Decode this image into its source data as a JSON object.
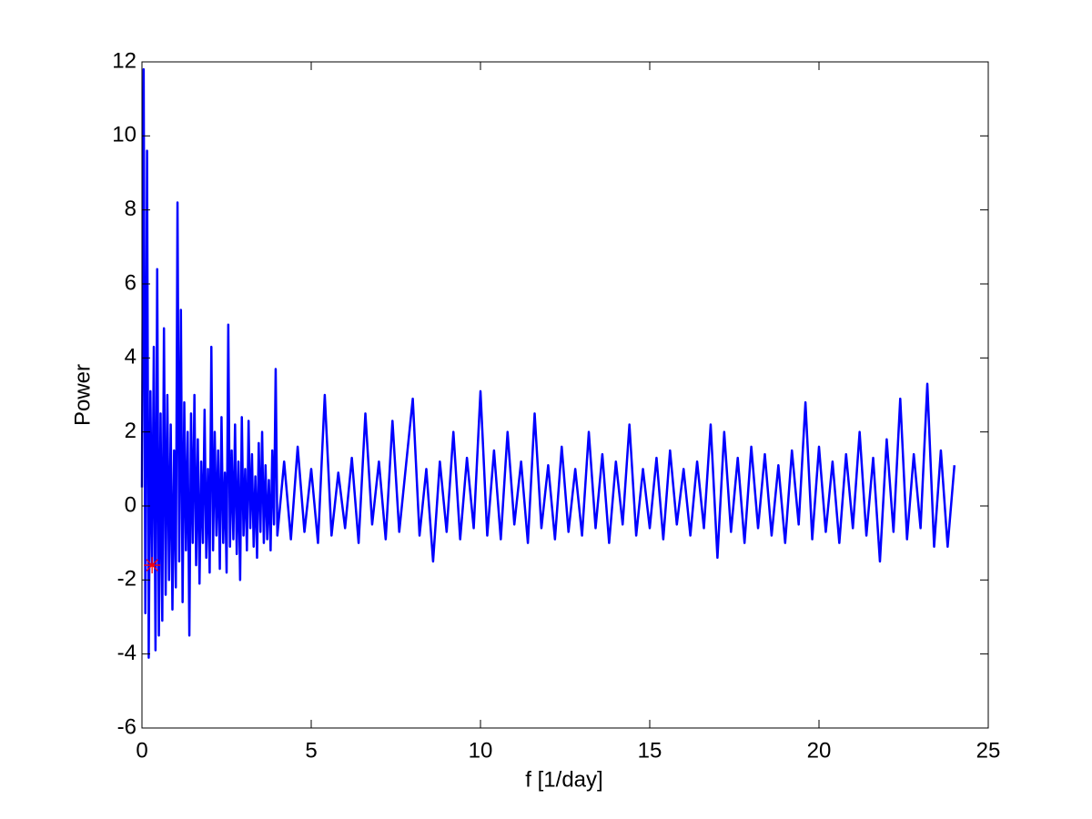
{
  "chart_data": {
    "type": "line",
    "xlabel": "f [1/day]",
    "ylabel": "Power",
    "xlim": [
      0,
      25
    ],
    "xticks": [
      0,
      5,
      10,
      15,
      20,
      25
    ],
    "ylim": [
      -6,
      12
    ],
    "yticks": [
      -6,
      -4,
      -2,
      0,
      2,
      4,
      6,
      8,
      10,
      12
    ],
    "grid": false,
    "color": "#0000ff",
    "x": [
      0,
      0.05,
      0.1,
      0.15,
      0.2,
      0.25,
      0.3,
      0.35,
      0.4,
      0.45,
      0.5,
      0.55,
      0.6,
      0.65,
      0.7,
      0.75,
      0.8,
      0.85,
      0.9,
      0.95,
      1.0,
      1.05,
      1.1,
      1.15,
      1.2,
      1.25,
      1.3,
      1.35,
      1.4,
      1.45,
      1.5,
      1.55,
      1.6,
      1.65,
      1.7,
      1.75,
      1.8,
      1.85,
      1.9,
      1.95,
      2.0,
      2.05,
      2.1,
      2.15,
      2.2,
      2.25,
      2.3,
      2.35,
      2.4,
      2.45,
      2.5,
      2.55,
      2.6,
      2.65,
      2.7,
      2.75,
      2.8,
      2.85,
      2.9,
      2.95,
      3.0,
      3.05,
      3.1,
      3.15,
      3.2,
      3.25,
      3.3,
      3.35,
      3.4,
      3.45,
      3.5,
      3.55,
      3.6,
      3.65,
      3.7,
      3.75,
      3.8,
      3.85,
      3.9,
      3.95,
      4.0,
      4.2,
      4.4,
      4.6,
      4.8,
      5.0,
      5.2,
      5.4,
      5.6,
      5.8,
      6.0,
      6.2,
      6.4,
      6.6,
      6.8,
      7.0,
      7.2,
      7.4,
      7.6,
      7.8,
      8.0,
      8.2,
      8.4,
      8.6,
      8.8,
      9.0,
      9.2,
      9.4,
      9.6,
      9.8,
      10.0,
      10.2,
      10.4,
      10.6,
      10.8,
      11.0,
      11.2,
      11.4,
      11.6,
      11.8,
      12.0,
      12.2,
      12.4,
      12.6,
      12.8,
      13.0,
      13.2,
      13.4,
      13.6,
      13.8,
      14.0,
      14.2,
      14.4,
      14.6,
      14.8,
      15.0,
      15.2,
      15.4,
      15.6,
      15.8,
      16.0,
      16.2,
      16.4,
      16.6,
      16.8,
      17.0,
      17.2,
      17.4,
      17.6,
      17.8,
      18.0,
      18.2,
      18.4,
      18.6,
      18.8,
      19.0,
      19.2,
      19.4,
      19.6,
      19.8,
      20.0,
      20.2,
      20.4,
      20.6,
      20.8,
      21.0,
      21.2,
      21.4,
      21.6,
      21.8,
      22.0,
      22.2,
      22.4,
      22.6,
      22.8,
      23.0,
      23.2,
      23.4,
      23.6,
      23.8,
      24.0
    ],
    "values": [
      0.5,
      11.8,
      -2.9,
      9.6,
      -4.1,
      3.1,
      -1.6,
      4.3,
      -3.9,
      6.4,
      -3.5,
      2.5,
      -3.1,
      4.8,
      -2.4,
      3.0,
      -2.0,
      2.2,
      -2.8,
      1.5,
      -2.2,
      8.2,
      -1.5,
      5.3,
      -2.6,
      2.8,
      -1.2,
      2.0,
      -3.5,
      2.5,
      -1.0,
      3.0,
      -1.6,
      1.8,
      -2.1,
      1.2,
      -1.0,
      2.6,
      -1.4,
      1.0,
      -1.8,
      4.3,
      -1.2,
      2.0,
      -0.8,
      1.5,
      -1.7,
      2.4,
      -1.0,
      0.9,
      -1.8,
      4.9,
      -1.1,
      1.5,
      -0.9,
      2.2,
      -1.3,
      1.2,
      -2.0,
      2.4,
      -0.8,
      1.0,
      -1.2,
      2.3,
      -0.6,
      1.4,
      -1.1,
      0.8,
      -1.4,
      1.7,
      -0.7,
      2.0,
      -1.0,
      1.1,
      -0.9,
      0.7,
      -1.2,
      1.5,
      -0.5,
      3.7,
      -0.8,
      1.2,
      -0.9,
      1.6,
      -0.7,
      1.0,
      -1.0,
      3.0,
      -0.8,
      0.9,
      -0.6,
      1.3,
      -1.0,
      2.5,
      -0.5,
      1.2,
      -0.9,
      2.3,
      -0.7,
      1.1,
      2.9,
      -0.8,
      1.0,
      -1.5,
      1.2,
      -0.7,
      2.0,
      -0.9,
      1.3,
      -0.6,
      3.1,
      -0.8,
      1.5,
      -0.9,
      2.0,
      -0.5,
      1.2,
      -1.0,
      2.5,
      -0.6,
      1.1,
      -0.9,
      1.6,
      -0.7,
      1.0,
      -0.8,
      2.0,
      -0.6,
      1.4,
      -1.0,
      1.2,
      -0.5,
      2.2,
      -0.8,
      1.0,
      -0.6,
      1.3,
      -0.9,
      1.5,
      -0.5,
      1.0,
      -0.8,
      1.2,
      -0.6,
      2.2,
      -1.4,
      2.0,
      -0.7,
      1.3,
      -1.0,
      1.6,
      -0.6,
      1.4,
      -0.8,
      1.1,
      -1.0,
      1.5,
      -0.5,
      2.8,
      -0.9,
      1.6,
      -0.7,
      1.2,
      -1.0,
      1.4,
      -0.6,
      2.0,
      -0.8,
      1.3,
      -1.5,
      1.8,
      -0.7,
      2.9,
      -0.9,
      1.4,
      -0.6,
      3.3,
      -1.1,
      1.5,
      -1.1,
      1.1
    ],
    "markers": {
      "x": [
        0.3
      ],
      "values": [
        -1.6
      ],
      "color": "#ff0000"
    }
  }
}
